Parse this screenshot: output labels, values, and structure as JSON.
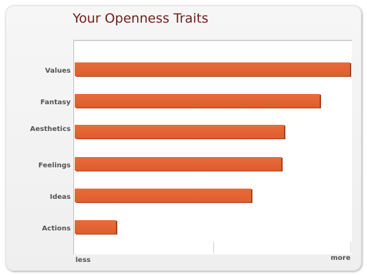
{
  "chart_data": {
    "type": "bar",
    "orientation": "horizontal",
    "title": "Your Openness Traits",
    "categories": [
      "Values",
      "Fantasy",
      "Aesthetics",
      "Feelings",
      "Ideas",
      "Actions"
    ],
    "values": [
      1.0,
      0.89,
      0.76,
      0.75,
      0.64,
      0.15
    ],
    "xlim": [
      0,
      1
    ],
    "x_tick_labels": {
      "min": "less",
      "max": "more"
    },
    "grid": false,
    "legend": "none",
    "colors": {
      "bar": "#e0622f",
      "bar_shadow": "#a8401b",
      "title": "#6e1f1a",
      "label": "#555555"
    }
  }
}
